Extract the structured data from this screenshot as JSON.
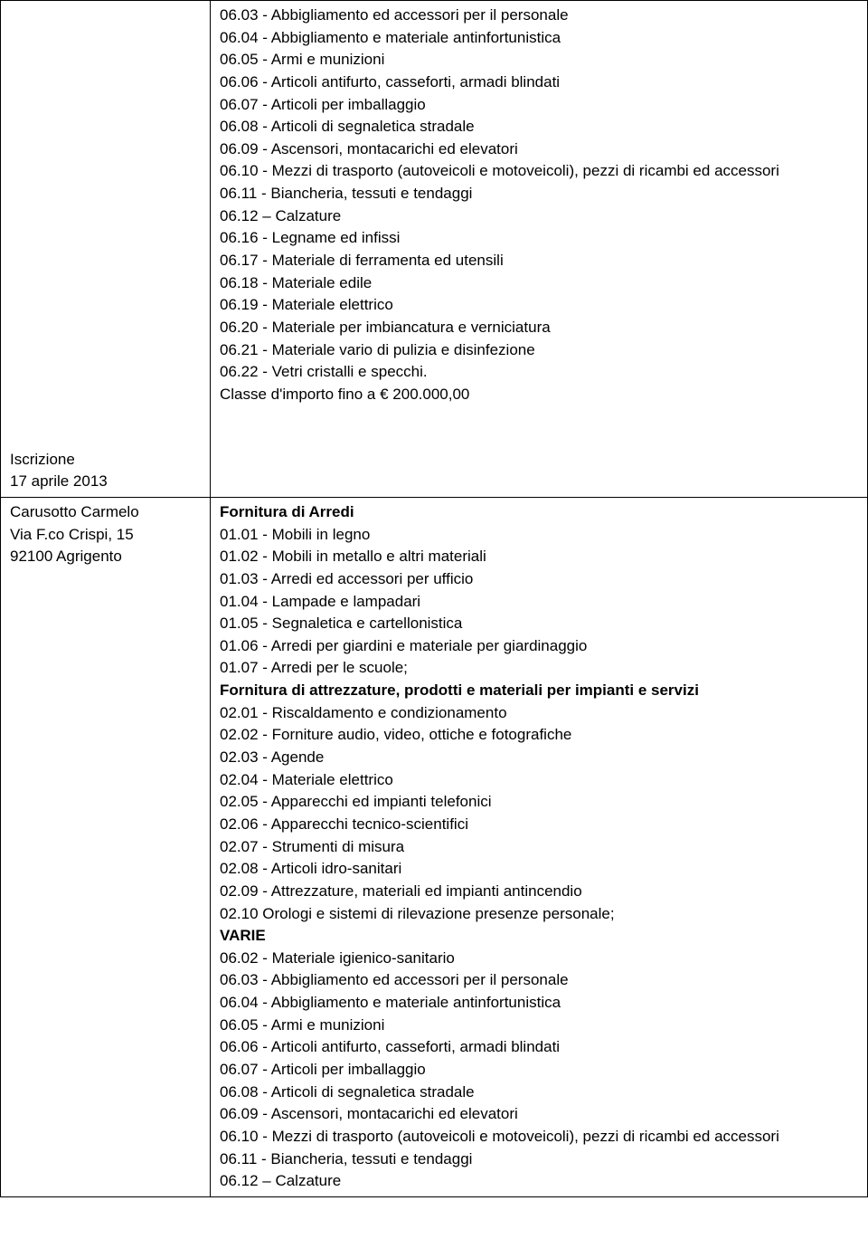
{
  "table": {
    "rows": [
      {
        "left": {
          "align_bottom": true,
          "lines": [
            {
              "text": "Iscrizione",
              "bold": false
            },
            {
              "text": "17 aprile 2013",
              "bold": false
            }
          ]
        },
        "right": [
          {
            "text": "06.03 - Abbigliamento ed accessori per il personale",
            "bold": false
          },
          {
            "text": "06.04 - Abbigliamento e materiale antinfortunistica",
            "bold": false
          },
          {
            "text": "06.05 - Armi e munizioni",
            "bold": false
          },
          {
            "text": "06.06 - Articoli antifurto, casseforti, armadi blindati",
            "bold": false
          },
          {
            "text": "06.07 - Articoli per imballaggio",
            "bold": false
          },
          {
            "text": "06.08 - Articoli di segnaletica stradale",
            "bold": false
          },
          {
            "text": "06.09 - Ascensori, montacarichi ed elevatori",
            "bold": false
          },
          {
            "text": "06.10 - Mezzi di trasporto (autoveicoli e motoveicoli), pezzi di ricambi ed accessori",
            "bold": false
          },
          {
            "text": "06.11 - Biancheria, tessuti e tendaggi",
            "bold": false
          },
          {
            "text": "06.12 – Calzature",
            "bold": false
          },
          {
            "text": "06.16 - Legname ed infissi",
            "bold": false
          },
          {
            "text": "06.17 - Materiale di ferramenta ed utensili",
            "bold": false
          },
          {
            "text": "06.18 - Materiale edile",
            "bold": false
          },
          {
            "text": "06.19 - Materiale elettrico",
            "bold": false
          },
          {
            "text": "06.20 - Materiale per imbiancatura e verniciatura",
            "bold": false
          },
          {
            "text": "06.21 - Materiale vario di pulizia e disinfezione",
            "bold": false
          },
          {
            "text": "06.22 - Vetri cristalli e specchi.",
            "bold": false
          },
          {
            "text": "Classe d'importo fino a € 200.000,00",
            "bold": false
          }
        ]
      },
      {
        "left": {
          "align_bottom": false,
          "lines": [
            {
              "text": "Carusotto Carmelo",
              "bold": false
            },
            {
              "text": "Via F.co Crispi, 15",
              "bold": false
            },
            {
              "text": "92100 Agrigento",
              "bold": false
            }
          ]
        },
        "right": [
          {
            "text": "Fornitura di Arredi",
            "bold": true
          },
          {
            "text": "01.01 - Mobili in legno",
            "bold": false
          },
          {
            "text": "01.02 - Mobili in metallo e altri materiali",
            "bold": false
          },
          {
            "text": "01.03 - Arredi ed accessori per ufficio",
            "bold": false
          },
          {
            "text": "01.04 - Lampade e lampadari",
            "bold": false
          },
          {
            "text": "01.05 - Segnaletica e cartellonistica",
            "bold": false
          },
          {
            "text": "01.06 - Arredi per giardini e materiale per giardinaggio",
            "bold": false
          },
          {
            "text": "01.07 - Arredi per le scuole;",
            "bold": false
          },
          {
            "text": "Fornitura di attrezzature, prodotti e materiali per impianti e servizi",
            "bold": true
          },
          {
            "text": "02.01 - Riscaldamento e condizionamento",
            "bold": false
          },
          {
            "text": "02.02 - Forniture audio, video, ottiche e fotografiche",
            "bold": false
          },
          {
            "text": "02.03 - Agende",
            "bold": false
          },
          {
            "text": "02.04 - Materiale elettrico",
            "bold": false
          },
          {
            "text": "02.05 - Apparecchi ed impianti telefonici",
            "bold": false
          },
          {
            "text": "02.06 - Apparecchi tecnico-scientifici",
            "bold": false
          },
          {
            "text": "02.07 - Strumenti di misura",
            "bold": false
          },
          {
            "text": "02.08 - Articoli idro-sanitari",
            "bold": false
          },
          {
            "text": "02.09 - Attrezzature, materiali ed impianti antincendio",
            "bold": false
          },
          {
            "text": "02.10 Orologi e sistemi di rilevazione presenze personale;",
            "bold": false
          },
          {
            "text": "VARIE",
            "bold": true
          },
          {
            "text": "06.02 - Materiale igienico-sanitario",
            "bold": false
          },
          {
            "text": "06.03 - Abbigliamento ed accessori per il personale",
            "bold": false
          },
          {
            "text": "06.04 - Abbigliamento e materiale antinfortunistica",
            "bold": false
          },
          {
            "text": "06.05 - Armi e munizioni",
            "bold": false
          },
          {
            "text": "06.06 - Articoli antifurto, casseforti, armadi blindati",
            "bold": false
          },
          {
            "text": "06.07 - Articoli per imballaggio",
            "bold": false
          },
          {
            "text": "06.08 - Articoli di segnaletica stradale",
            "bold": false
          },
          {
            "text": "06.09 - Ascensori, montacarichi ed elevatori",
            "bold": false
          },
          {
            "text": "06.10 - Mezzi di trasporto (autoveicoli e motoveicoli), pezzi di ricambi ed accessori",
            "bold": false
          },
          {
            "text": "06.11 - Biancheria, tessuti e tendaggi",
            "bold": false
          },
          {
            "text": "06.12 – Calzature",
            "bold": false
          }
        ]
      }
    ]
  }
}
